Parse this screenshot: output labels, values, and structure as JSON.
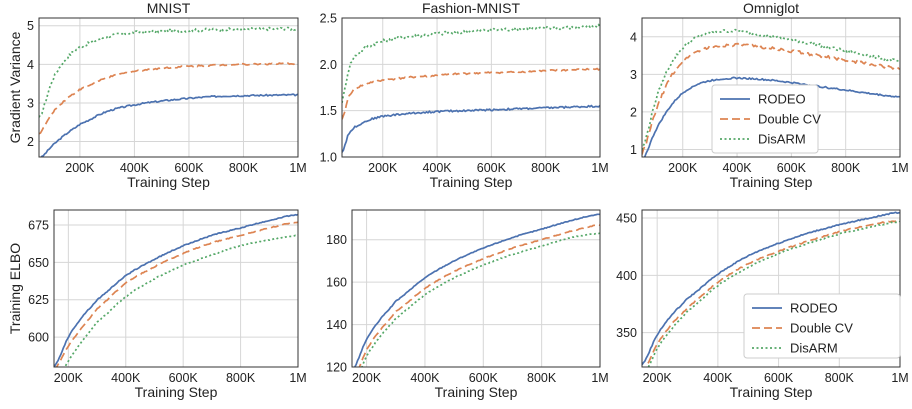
{
  "chart_data": [
    {
      "type": "line",
      "title": "MNIST",
      "xlabel": "Training Step",
      "ylabel": "Gradient Variance",
      "xlim": [
        50000,
        1000000
      ],
      "ylim": [
        1.6,
        5.2
      ],
      "xticks": [
        200000,
        400000,
        600000,
        800000,
        1000000
      ],
      "xtick_labels": [
        "200K",
        "400K",
        "600K",
        "800K",
        "1M"
      ],
      "yticks": [
        2,
        3,
        4,
        5
      ],
      "ytick_labels": [
        "2",
        "3",
        "4",
        "5"
      ],
      "grid": true,
      "legend": false,
      "series": [
        {
          "name": "RODEO",
          "color": "#4c72b0",
          "dash": "solid",
          "noise": 0.02,
          "x": [
            50000,
            100000,
            150000,
            200000,
            300000,
            400000,
            500000,
            600000,
            700000,
            800000,
            900000,
            1000000
          ],
          "y": [
            1.55,
            1.9,
            2.2,
            2.45,
            2.78,
            2.95,
            3.05,
            3.12,
            3.17,
            3.19,
            3.2,
            3.21
          ]
        },
        {
          "name": "Double CV",
          "color": "#dd8452",
          "dash": "dashed",
          "noise": 0.02,
          "x": [
            50000,
            100000,
            150000,
            200000,
            300000,
            400000,
            500000,
            600000,
            700000,
            800000,
            900000,
            1000000
          ],
          "y": [
            2.2,
            2.75,
            3.1,
            3.35,
            3.65,
            3.82,
            3.9,
            3.95,
            3.98,
            4.0,
            4.01,
            4.02
          ]
        },
        {
          "name": "DisARM",
          "color": "#55a868",
          "dash": "dotted",
          "noise": 0.04,
          "x": [
            50000,
            100000,
            150000,
            200000,
            300000,
            400000,
            500000,
            600000,
            700000,
            800000,
            900000,
            1000000
          ],
          "y": [
            2.6,
            3.6,
            4.15,
            4.45,
            4.72,
            4.82,
            4.86,
            4.88,
            4.9,
            4.91,
            4.92,
            4.92
          ]
        }
      ]
    },
    {
      "type": "line",
      "title": "Fashion-MNIST",
      "xlabel": "Training Step",
      "ylabel": "",
      "xlim": [
        50000,
        1000000
      ],
      "ylim": [
        1.0,
        2.5
      ],
      "xticks": [
        200000,
        400000,
        600000,
        800000,
        1000000
      ],
      "xtick_labels": [
        "200K",
        "400K",
        "600K",
        "800K",
        "1M"
      ],
      "yticks": [
        1.0,
        1.5,
        2.0,
        2.5
      ],
      "ytick_labels": [
        "1.0",
        "1.5",
        "2.0",
        "2.5"
      ],
      "grid": true,
      "legend": false,
      "series": [
        {
          "name": "RODEO",
          "color": "#4c72b0",
          "dash": "solid",
          "noise": 0.01,
          "x": [
            50000,
            75000,
            100000,
            150000,
            200000,
            300000,
            400000,
            500000,
            600000,
            700000,
            800000,
            900000,
            1000000
          ],
          "y": [
            1.05,
            1.25,
            1.33,
            1.4,
            1.44,
            1.47,
            1.49,
            1.5,
            1.51,
            1.52,
            1.53,
            1.54,
            1.55
          ]
        },
        {
          "name": "Double CV",
          "color": "#dd8452",
          "dash": "dashed",
          "noise": 0.01,
          "x": [
            50000,
            75000,
            100000,
            150000,
            200000,
            300000,
            400000,
            500000,
            600000,
            700000,
            800000,
            900000,
            1000000
          ],
          "y": [
            1.4,
            1.65,
            1.74,
            1.8,
            1.83,
            1.86,
            1.88,
            1.9,
            1.91,
            1.92,
            1.93,
            1.94,
            1.95
          ]
        },
        {
          "name": "DisARM",
          "color": "#55a868",
          "dash": "dotted",
          "noise": 0.02,
          "x": [
            50000,
            75000,
            100000,
            150000,
            200000,
            300000,
            400000,
            500000,
            600000,
            700000,
            800000,
            900000,
            1000000
          ],
          "y": [
            1.6,
            1.95,
            2.1,
            2.2,
            2.25,
            2.3,
            2.33,
            2.35,
            2.37,
            2.38,
            2.39,
            2.4,
            2.41
          ]
        }
      ]
    },
    {
      "type": "line",
      "title": "Omniglot",
      "xlabel": "Training Step",
      "ylabel": "",
      "xlim": [
        50000,
        1000000
      ],
      "ylim": [
        0.8,
        4.5
      ],
      "xticks": [
        200000,
        400000,
        600000,
        800000,
        1000000
      ],
      "xtick_labels": [
        "200K",
        "400K",
        "600K",
        "800K",
        "1M"
      ],
      "yticks": [
        1,
        2,
        3,
        4
      ],
      "ytick_labels": [
        "1",
        "2",
        "3",
        "4"
      ],
      "grid": true,
      "legend": true,
      "legend_location": "center-right",
      "series": [
        {
          "name": "RODEO",
          "color": "#4c72b0",
          "dash": "solid",
          "noise": 0.02,
          "x": [
            50000,
            100000,
            150000,
            200000,
            250000,
            300000,
            350000,
            400000,
            500000,
            600000,
            700000,
            800000,
            900000,
            1000000
          ],
          "y": [
            0.7,
            1.5,
            2.1,
            2.5,
            2.72,
            2.83,
            2.88,
            2.9,
            2.86,
            2.78,
            2.68,
            2.58,
            2.48,
            2.4
          ]
        },
        {
          "name": "Double CV",
          "color": "#dd8452",
          "dash": "dashed",
          "noise": 0.04,
          "x": [
            50000,
            100000,
            150000,
            200000,
            250000,
            300000,
            350000,
            400000,
            500000,
            600000,
            700000,
            800000,
            900000,
            1000000
          ],
          "y": [
            0.9,
            2.0,
            2.85,
            3.35,
            3.6,
            3.72,
            3.77,
            3.78,
            3.72,
            3.62,
            3.5,
            3.38,
            3.26,
            3.15
          ]
        },
        {
          "name": "DisARM",
          "color": "#55a868",
          "dash": "dotted",
          "noise": 0.04,
          "x": [
            50000,
            100000,
            150000,
            200000,
            250000,
            300000,
            350000,
            400000,
            500000,
            600000,
            700000,
            800000,
            900000,
            1000000
          ],
          "y": [
            1.0,
            2.3,
            3.2,
            3.7,
            3.98,
            4.1,
            4.15,
            4.15,
            4.05,
            3.92,
            3.78,
            3.62,
            3.48,
            3.35
          ]
        }
      ]
    },
    {
      "type": "line",
      "title": "",
      "xlabel": "Training Step",
      "ylabel": "Training ELBO",
      "xlim": [
        150000,
        1000000
      ],
      "ylim": [
        580,
        685
      ],
      "xticks": [
        200000,
        400000,
        600000,
        800000,
        1000000
      ],
      "xtick_labels": [
        "200K",
        "400K",
        "600K",
        "800K",
        "1M"
      ],
      "yticks": [
        600,
        625,
        650,
        675
      ],
      "ytick_labels": [
        "600",
        "625",
        "650",
        "675"
      ],
      "grid": true,
      "legend": false,
      "series": [
        {
          "name": "RODEO",
          "color": "#4c72b0",
          "dash": "solid",
          "noise": 0.3,
          "x": [
            150000,
            200000,
            250000,
            300000,
            400000,
            500000,
            600000,
            700000,
            800000,
            900000,
            1000000
          ],
          "y": [
            580,
            600,
            614,
            625,
            641,
            652,
            661,
            668,
            673,
            678,
            682
          ]
        },
        {
          "name": "Double CV",
          "color": "#dd8452",
          "dash": "dashed",
          "noise": 0.3,
          "x": [
            150000,
            200000,
            250000,
            300000,
            400000,
            500000,
            600000,
            700000,
            800000,
            900000,
            1000000
          ],
          "y": [
            578,
            594,
            607,
            619,
            636,
            647,
            656,
            663,
            668,
            673,
            677
          ]
        },
        {
          "name": "DisARM",
          "color": "#55a868",
          "dash": "dotted",
          "noise": 0.3,
          "x": [
            150000,
            200000,
            250000,
            300000,
            400000,
            500000,
            600000,
            700000,
            800000,
            900000,
            1000000
          ],
          "y": [
            568,
            584,
            598,
            610,
            627,
            639,
            648,
            655,
            661,
            665,
            668
          ]
        }
      ]
    },
    {
      "type": "line",
      "title": "",
      "xlabel": "Training Step",
      "ylabel": "",
      "xlim": [
        150000,
        1000000
      ],
      "ylim": [
        120,
        194
      ],
      "xticks": [
        200000,
        400000,
        600000,
        800000,
        1000000
      ],
      "xtick_labels": [
        "200K",
        "400K",
        "600K",
        "800K",
        "1M"
      ],
      "yticks": [
        120,
        140,
        160,
        180
      ],
      "ytick_labels": [
        "120",
        "140",
        "160",
        "180"
      ],
      "grid": true,
      "legend": false,
      "series": [
        {
          "name": "RODEO",
          "color": "#4c72b0",
          "dash": "solid",
          "noise": 0.2,
          "x": [
            150000,
            200000,
            250000,
            300000,
            400000,
            500000,
            600000,
            700000,
            800000,
            900000,
            1000000
          ],
          "y": [
            118,
            133,
            143,
            151,
            162,
            170,
            176,
            181,
            185,
            189,
            192
          ]
        },
        {
          "name": "Double CV",
          "color": "#dd8452",
          "dash": "dashed",
          "noise": 0.2,
          "x": [
            150000,
            200000,
            250000,
            300000,
            400000,
            500000,
            600000,
            700000,
            800000,
            900000,
            1000000
          ],
          "y": [
            113,
            128,
            138,
            146,
            157,
            165,
            171,
            176,
            180,
            184,
            187
          ]
        },
        {
          "name": "DisARM",
          "color": "#55a868",
          "dash": "dotted",
          "noise": 0.2,
          "x": [
            150000,
            200000,
            250000,
            300000,
            400000,
            500000,
            600000,
            700000,
            800000,
            900000,
            1000000
          ],
          "y": [
            110,
            125,
            135,
            143,
            154,
            162,
            168,
            173,
            177,
            181,
            183
          ]
        }
      ]
    },
    {
      "type": "line",
      "title": "",
      "xlabel": "Training Step",
      "ylabel": "",
      "xlim": [
        150000,
        1000000
      ],
      "ylim": [
        320,
        457
      ],
      "xticks": [
        200000,
        400000,
        600000,
        800000,
        1000000
      ],
      "xtick_labels": [
        "200K",
        "400K",
        "600K",
        "800K",
        "1M"
      ],
      "yticks": [
        350,
        400,
        450
      ],
      "ytick_labels": [
        "350",
        "400",
        "450"
      ],
      "grid": true,
      "legend": true,
      "legend_location": "lower-right",
      "series": [
        {
          "name": "RODEO",
          "color": "#4c72b0",
          "dash": "solid",
          "noise": 0.5,
          "x": [
            150000,
            200000,
            250000,
            300000,
            400000,
            500000,
            600000,
            700000,
            800000,
            900000,
            1000000
          ],
          "y": [
            322,
            348,
            366,
            380,
            401,
            417,
            428,
            437,
            444,
            450,
            455
          ]
        },
        {
          "name": "Double CV",
          "color": "#dd8452",
          "dash": "dashed",
          "noise": 0.5,
          "x": [
            150000,
            200000,
            250000,
            300000,
            400000,
            500000,
            600000,
            700000,
            800000,
            900000,
            1000000
          ],
          "y": [
            314,
            340,
            358,
            372,
            394,
            410,
            421,
            430,
            438,
            444,
            448
          ]
        },
        {
          "name": "DisARM",
          "color": "#55a868",
          "dash": "dotted",
          "noise": 0.5,
          "x": [
            150000,
            200000,
            250000,
            300000,
            400000,
            500000,
            600000,
            700000,
            800000,
            900000,
            1000000
          ],
          "y": [
            310,
            336,
            354,
            369,
            391,
            407,
            419,
            428,
            436,
            442,
            447
          ]
        }
      ]
    }
  ]
}
